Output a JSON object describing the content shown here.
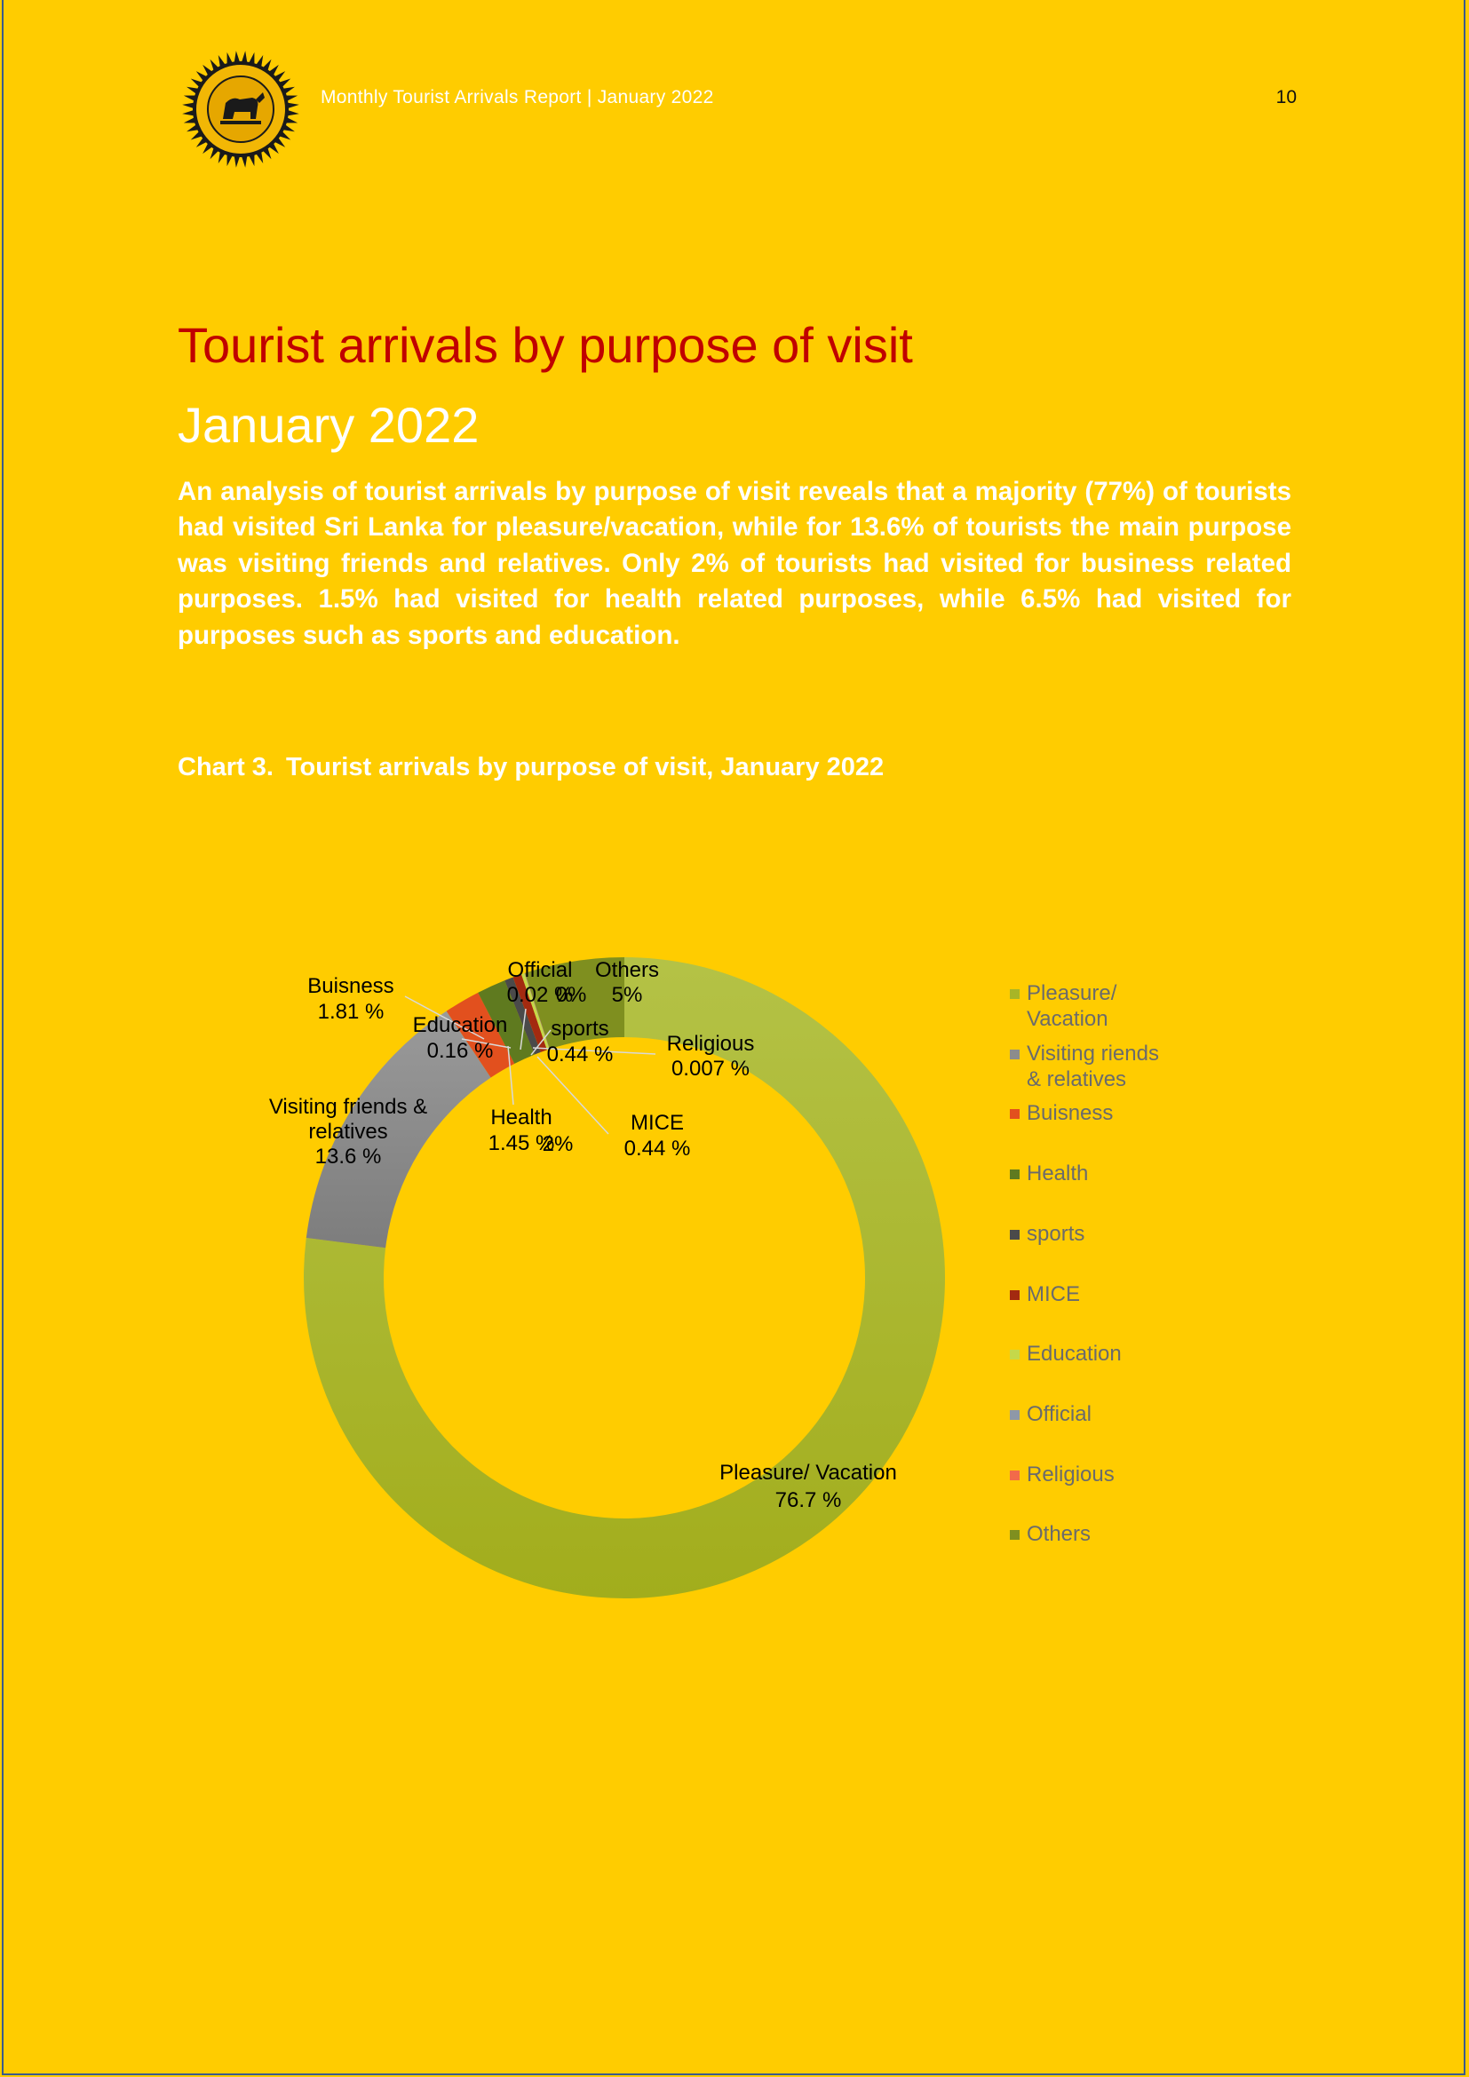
{
  "header": {
    "title": "Monthly Tourist Arrivals Report | January 2022",
    "page_number": "10",
    "logo_text": "SRI LANKA TOURISM DEVELOPMENT AUTHORITY"
  },
  "section": {
    "title": "Tourist arrivals by purpose of visit",
    "subtitle": "January 2022",
    "summary": "An analysis of tourist arrivals by purpose of visit reveals that a majority (77%) of tourists had visited Sri Lanka for pleasure/vacation, while for 13.6% of tourists the main purpose was visiting friends and relatives. Only 2% of tourists had visited for business related purposes. 1.5% had visited for health related purposes, while 6.5% had visited for purposes such as sports and education."
  },
  "chart_caption": {
    "label": "Chart 3.",
    "text": "Tourist arrivals by purpose of visit, January 2022"
  },
  "chart_data": {
    "type": "pie",
    "variant": "doughnut",
    "legend_position": "right",
    "series": [
      {
        "name": "Pleasure/ Vacation",
        "legend": "Pleasure/ Vacation",
        "value": 76.7,
        "label_value": "76.7 %",
        "color": "#a8b526"
      },
      {
        "name": "Visiting friends & relatives",
        "legend": "Visiting riends & relatives",
        "value": 13.6,
        "label_value": "13.6 %",
        "color": "#8c8c8c"
      },
      {
        "name": "Buisness",
        "legend": "Buisness",
        "value": 1.81,
        "label_value": "1.81 %",
        "color": "#e2501e"
      },
      {
        "name": "Health",
        "legend": "Health",
        "value": 1.45,
        "label_value": "1.45 %",
        "color": "#5f7a1f"
      },
      {
        "name": "sports",
        "legend": "sports",
        "value": 0.44,
        "label_value": "0.44 %",
        "color": "#4a4a4a"
      },
      {
        "name": "MICE",
        "legend": "MICE",
        "value": 0.44,
        "label_value": "0.44 %",
        "color": "#a32a10"
      },
      {
        "name": "Education",
        "legend": "Education",
        "value": 0.16,
        "label_value": "0.16 %",
        "color": "#c5d84a"
      },
      {
        "name": "Official",
        "legend": "Official",
        "value": 0.02,
        "label_value": "0.02 %",
        "color": "#8e98a8"
      },
      {
        "name": "Religious",
        "legend": "Religious",
        "value": 0.007,
        "label_value": "0.007 %",
        "color": "#f26a4a"
      },
      {
        "name": "Others",
        "legend": "Others",
        "value": 5,
        "label_value": "5%",
        "color": "#7f8f1f"
      }
    ],
    "extra_labels": [
      "0%",
      "2%"
    ]
  }
}
